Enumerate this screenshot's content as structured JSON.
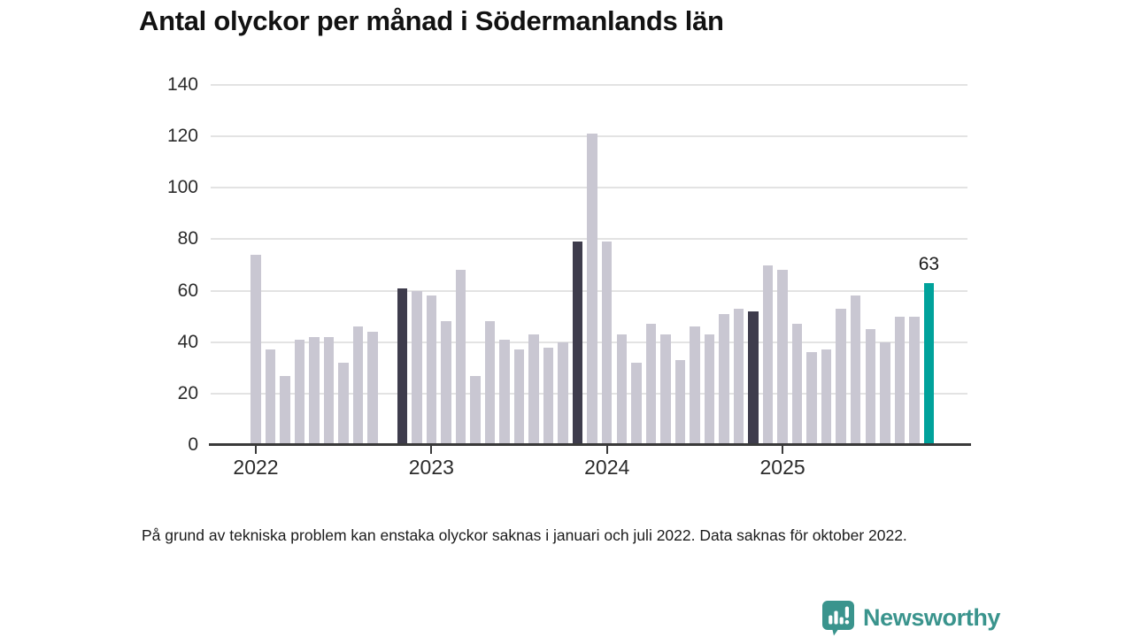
{
  "title": "Antal olyckor per månad i Södermanlands län",
  "footnote": "På grund av tekniska problem kan enstaka olyckor saknas i januari och juli 2022. Data saknas för oktober 2022.",
  "branding": {
    "logo_text": "Newsworthy",
    "logo_icon": "bar-chart-speech-bubble-icon"
  },
  "colors": {
    "bar_default": "#c9c7d2",
    "bar_highlight_previous": "#3e3c4c",
    "bar_highlight_latest": "#00a29b",
    "axis": "#3a3a3a",
    "gridline": "#e3e3e3",
    "text": "#1a1a1a",
    "brand_teal": "#3a948d"
  },
  "chart_data": {
    "type": "bar",
    "title": "Antal olyckor per månad i Södermanlands län",
    "xlabel": "",
    "ylabel": "",
    "ylim": [
      0,
      140
    ],
    "y_ticks": [
      0,
      20,
      40,
      60,
      80,
      100,
      120,
      140
    ],
    "x_tick_labels": [
      "2022",
      "2023",
      "2024",
      "2025"
    ],
    "grid": true,
    "legend": "none",
    "highlight_note": "dark bars = november previous years, teal bar = latest month (labeled)",
    "points": [
      {
        "month": "2022-01",
        "value": 74
      },
      {
        "month": "2022-02",
        "value": 37
      },
      {
        "month": "2022-03",
        "value": 27
      },
      {
        "month": "2022-04",
        "value": 41
      },
      {
        "month": "2022-05",
        "value": 42
      },
      {
        "month": "2022-06",
        "value": 42
      },
      {
        "month": "2022-07",
        "value": 32
      },
      {
        "month": "2022-08",
        "value": 46
      },
      {
        "month": "2022-09",
        "value": 44
      },
      {
        "month": "2022-10",
        "value": null
      },
      {
        "month": "2022-11",
        "value": 61,
        "highlight": "dark"
      },
      {
        "month": "2022-12",
        "value": 60
      },
      {
        "month": "2023-01",
        "value": 58
      },
      {
        "month": "2023-02",
        "value": 48
      },
      {
        "month": "2023-03",
        "value": 68
      },
      {
        "month": "2023-04",
        "value": 27
      },
      {
        "month": "2023-05",
        "value": 48
      },
      {
        "month": "2023-06",
        "value": 41
      },
      {
        "month": "2023-07",
        "value": 37
      },
      {
        "month": "2023-08",
        "value": 43
      },
      {
        "month": "2023-09",
        "value": 38
      },
      {
        "month": "2023-10",
        "value": 40
      },
      {
        "month": "2023-11",
        "value": 79,
        "highlight": "dark"
      },
      {
        "month": "2023-12",
        "value": 121
      },
      {
        "month": "2024-01",
        "value": 79
      },
      {
        "month": "2024-02",
        "value": 43
      },
      {
        "month": "2024-03",
        "value": 32
      },
      {
        "month": "2024-04",
        "value": 47
      },
      {
        "month": "2024-05",
        "value": 43
      },
      {
        "month": "2024-06",
        "value": 33
      },
      {
        "month": "2024-07",
        "value": 46
      },
      {
        "month": "2024-08",
        "value": 43
      },
      {
        "month": "2024-09",
        "value": 51
      },
      {
        "month": "2024-10",
        "value": 53
      },
      {
        "month": "2024-11",
        "value": 52,
        "highlight": "dark"
      },
      {
        "month": "2024-12",
        "value": 70
      },
      {
        "month": "2025-01",
        "value": 68
      },
      {
        "month": "2025-02",
        "value": 47
      },
      {
        "month": "2025-03",
        "value": 36
      },
      {
        "month": "2025-04",
        "value": 37
      },
      {
        "month": "2025-05",
        "value": 53
      },
      {
        "month": "2025-06",
        "value": 58
      },
      {
        "month": "2025-07",
        "value": 45
      },
      {
        "month": "2025-08",
        "value": 40
      },
      {
        "month": "2025-09",
        "value": 50
      },
      {
        "month": "2025-10",
        "value": 50
      },
      {
        "month": "2025-11",
        "value": 63,
        "highlight": "current",
        "label": "63"
      }
    ]
  }
}
